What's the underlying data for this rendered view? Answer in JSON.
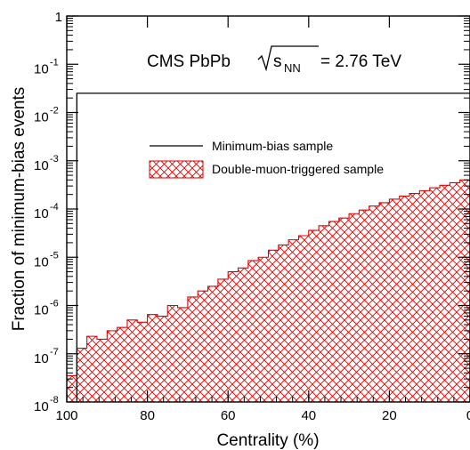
{
  "chart_data": {
    "type": "bar",
    "title": "",
    "annotation": {
      "prefix": "CMS PbPb",
      "sqrt_base": "s",
      "sqrt_sub": "NN",
      "suffix": "= 2.76 TeV"
    },
    "xlabel": "Centrality (%)",
    "ylabel": "Fraction of minimum-bias events",
    "xlim": [
      100,
      0
    ],
    "ylim": [
      1e-08,
      1
    ],
    "yscale": "log",
    "x_ticks": [
      "100",
      "80",
      "60",
      "40",
      "20",
      "0"
    ],
    "x_tick_values": [
      100,
      80,
      60,
      40,
      20,
      0
    ],
    "y_ticks": [
      {
        "base": "10",
        "exp": "-8",
        "value": 1e-08
      },
      {
        "base": "10",
        "exp": "-7",
        "value": 1e-07
      },
      {
        "base": "10",
        "exp": "-6",
        "value": 1e-06
      },
      {
        "base": "10",
        "exp": "-5",
        "value": 1e-05
      },
      {
        "base": "10",
        "exp": "-4",
        "value": 0.0001
      },
      {
        "base": "10",
        "exp": "-3",
        "value": 0.001
      },
      {
        "base": "10",
        "exp": "-2",
        "value": 0.01
      },
      {
        "base": "10",
        "exp": "-1",
        "value": 0.1
      },
      {
        "base": "1",
        "exp": "",
        "value": 1
      }
    ],
    "legend_placement": "upper-right",
    "bin_width": 2.5,
    "series": [
      {
        "name": "Minimum-bias sample",
        "style": "line",
        "color": "#000000",
        "bin_start": 97.5,
        "bin_end": 0,
        "values": [
          0.025
        ]
      },
      {
        "name": "Double-muon-triggered sample",
        "style": "hatch",
        "color": "#e00000",
        "bin_edges": [
          100,
          97.5,
          95,
          92.5,
          90,
          87.5,
          85,
          82.5,
          80,
          77.5,
          75,
          72.5,
          70,
          67.5,
          65,
          62.5,
          60,
          57.5,
          55,
          52.5,
          50,
          47.5,
          45,
          42.5,
          40,
          37.5,
          35,
          32.5,
          30,
          27.5,
          25,
          22.5,
          20,
          17.5,
          15,
          12.5,
          10,
          7.5,
          5,
          2.5,
          0
        ],
        "values": [
          3.5e-08,
          1.3e-07,
          2.3e-07,
          2e-07,
          3e-07,
          3.5e-07,
          5e-07,
          4.5e-07,
          6.5e-07,
          6e-07,
          1e-06,
          9e-07,
          1.5e-06,
          2e-06,
          2.5e-06,
          3.5e-06,
          5e-06,
          6e-06,
          8.5e-06,
          1e-05,
          1.4e-05,
          1.8e-05,
          2.3e-05,
          2.8e-05,
          3.6e-05,
          4.5e-05,
          5.5e-05,
          6.5e-05,
          8e-05,
          9.5e-05,
          0.000115,
          0.000135,
          0.00016,
          0.000185,
          0.00021,
          0.00024,
          0.000275,
          0.00031,
          0.00035,
          0.0004
        ]
      }
    ]
  }
}
